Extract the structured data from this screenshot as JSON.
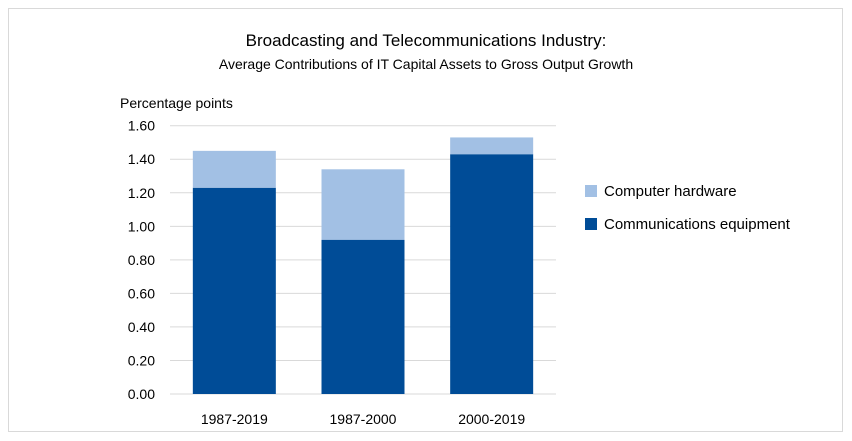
{
  "chart_data": {
    "type": "bar",
    "stacked": true,
    "title": "Broadcasting and Telecommunications Industry:",
    "subtitle": "Average Contributions of IT Capital Assets to Gross Output Growth",
    "xlabel": "",
    "ylabel": "Percentage points",
    "ylim": [
      0,
      1.6
    ],
    "yticks": [
      "0.00",
      "0.20",
      "0.40",
      "0.60",
      "0.80",
      "1.00",
      "1.20",
      "1.40",
      "1.60"
    ],
    "grid": true,
    "legend_position": "right",
    "categories": [
      "1987-2019",
      "1987-2000",
      "2000-2019"
    ],
    "series": [
      {
        "name": "Communications equipment",
        "color": "#004C97",
        "values": [
          1.23,
          0.92,
          1.43
        ]
      },
      {
        "name": "Computer hardware",
        "color": "#A2C0E4",
        "values": [
          0.22,
          0.42,
          0.1
        ]
      }
    ]
  }
}
